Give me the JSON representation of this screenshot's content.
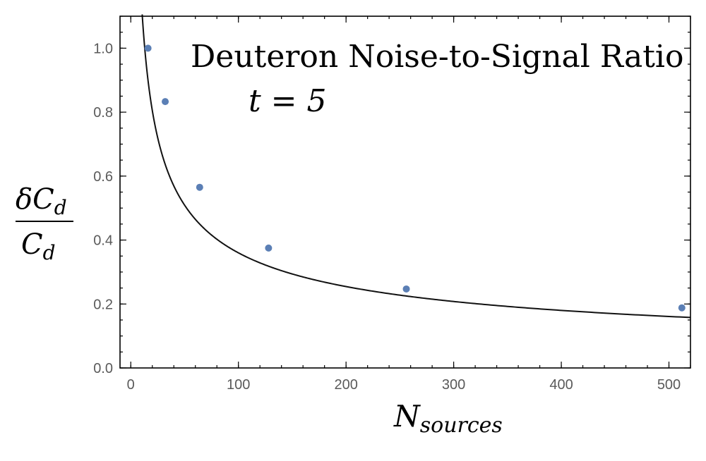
{
  "chart_data": {
    "type": "scatter",
    "title": "Deuteron Noise-to-Signal Ratio",
    "subtitle": "t = 5",
    "xlabel": "N",
    "xlabel_sub": "sources",
    "ylabel_num": "δC",
    "ylabel_den": "C",
    "ylabel_sub": "d",
    "xlim": [
      -10,
      520
    ],
    "ylim": [
      0,
      1.1
    ],
    "x_ticks": [
      0,
      100,
      200,
      300,
      400,
      500
    ],
    "y_ticks": [
      0.0,
      0.2,
      0.4,
      0.6,
      0.8,
      1.0
    ],
    "x_tick_labels": [
      "0",
      "100",
      "200",
      "300",
      "400",
      "500"
    ],
    "y_tick_labels": [
      "0.0",
      "0.2",
      "0.4",
      "0.6",
      "0.8",
      "1.0"
    ],
    "series": [
      {
        "type": "scatter",
        "color": "#5b7fb5",
        "x": [
          16,
          32,
          64,
          128,
          256,
          512
        ],
        "y": [
          1.0,
          0.833,
          0.565,
          0.375,
          0.247,
          0.188
        ]
      },
      {
        "type": "line",
        "color": "#111111",
        "formula": "3.6 / sqrt(N)",
        "x_range": [
          10.6,
          520
        ]
      }
    ],
    "grid": false,
    "legend": "none"
  }
}
